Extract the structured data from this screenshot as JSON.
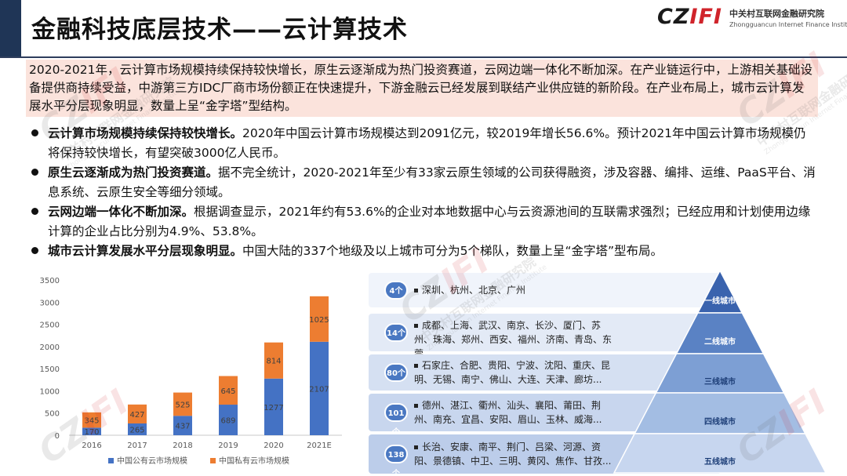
{
  "header": {
    "title": "金融科技底层技术——云计算技术",
    "logo": {
      "mark_dark": "CZ",
      "mark_red": "IFI",
      "cn": "中关村互联网金融研究院",
      "en": "Zhongguancun Internet Finance Institute"
    }
  },
  "summary": "2020-2021年，云计算市场规模持续保持较快增长，原生云逐渐成为热门投资赛道，云网边端一体化不断加深。在产业链运行中，上游相关基础设备提供商持续受益，中游第三方IDC厂商市场份额正在快速提升，下游金融云已经发展到联结产业供应链的新阶段。在产业布局上，城市云计算发展水平分层现象明显，数量上呈“金字塔”型结构。",
  "bullets": [
    {
      "lead": "云计算市场规模持续保持较快增长。",
      "text": "2020年中国云计算市场规模达到2091亿元，较2019年增长56.6%。预计2021年中国云计算市场规模仍将保持较快增长，有望突破3000亿人民币。"
    },
    {
      "lead": "原生云逐渐成为热门投资赛道。",
      "text": "据不完全统计，2020-2021年至少有33家云原生领域的公司获得融资，涉及容器、编排、运维、PaaS平台、消息系统、云原生安全等细分领域。"
    },
    {
      "lead": "云网边端一体化不断加深。",
      "text": "根据调查显示，2021年约有53.6%的企业对本地数据中心与云资源池间的互联需求强烈；已经应用和计划使用边缘计算的企业占比分别为4.9%、53.8%。"
    },
    {
      "lead": "城市云计算发展水平分层现象明显。",
      "text": "中国大陆的337个地级及以上城市可分为5个梯队，数量上呈“金字塔”型布局。"
    }
  ],
  "chart_data": {
    "type": "bar",
    "stacked": true,
    "categories": [
      "2016",
      "2017",
      "2018",
      "2019",
      "2020",
      "2021E"
    ],
    "series": [
      {
        "name": "中国公有云市场规模",
        "color": "#4472c4",
        "values": [
          170,
          265,
          437,
          689,
          1277,
          2107
        ]
      },
      {
        "name": "中国私有云市场规模",
        "color": "#ed7d31",
        "values": [
          345,
          427,
          525,
          645,
          814,
          1025
        ]
      }
    ],
    "yticks": [
      0,
      500,
      1000,
      1500,
      2000,
      2500,
      3000,
      3500
    ],
    "ylim": [
      0,
      3500
    ],
    "legend_position": "bottom",
    "grid": false
  },
  "tiers": [
    {
      "badge": "4个",
      "cities": "深圳、杭州、北京、广州",
      "label": "一线城市"
    },
    {
      "badge": "14个",
      "cities": "成都、上海、武汉、南京、长沙、厦门、苏州、珠海、郑州、西安、福州、济南、青岛、东莞",
      "label": "二线城市"
    },
    {
      "badge": "80个",
      "cities": "石家庄、合肥、贵阳、宁波、沈阳、重庆、昆明、无锡、南宁、佛山、大连、天津、廊坊...",
      "label": "三线城市"
    },
    {
      "badge": "101个",
      "cities": "德州、湛江、衢州、汕头、襄阳、莆田、荆州、南充、宜昌、安阳、眉山、玉林、威海...",
      "label": "四线城市"
    },
    {
      "badge": "138个",
      "cities": "长治、安康、南平、荆门、吕梁、河源、资阳、景德镇、中卫、三明、黄冈、焦作、甘孜...",
      "label": "五线城市"
    }
  ],
  "colors": {
    "accent": "#1f3556",
    "summary_bg": "#fbe3dc",
    "logo_red": "#d0242b",
    "badge": "#4a78c2"
  }
}
